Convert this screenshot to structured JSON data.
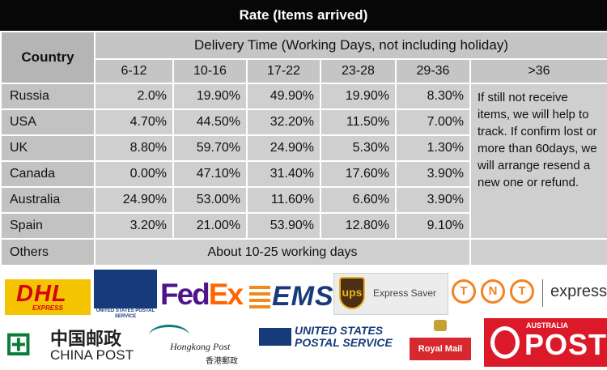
{
  "title": "Rate (Items arrived)",
  "table": {
    "country_header": "Country",
    "delivery_header": "Delivery Time (Working Days, not including holiday)",
    "ranges": [
      "6-12",
      "10-16",
      "17-22",
      "23-28",
      "29-36",
      ">36"
    ],
    "rows": [
      {
        "country": "Russia",
        "values": [
          "2.0%",
          "19.90%",
          "49.90%",
          "19.90%",
          "8.30%"
        ]
      },
      {
        "country": "USA",
        "values": [
          "4.70%",
          "44.50%",
          "32.20%",
          "11.50%",
          "7.00%"
        ]
      },
      {
        "country": "UK",
        "values": [
          "8.80%",
          "59.70%",
          "24.90%",
          "5.30%",
          "1.30%"
        ]
      },
      {
        "country": "Canada",
        "values": [
          "0.00%",
          "47.10%",
          "31.40%",
          "17.60%",
          "3.90%"
        ]
      },
      {
        "country": "Australia",
        "values": [
          "24.90%",
          "53.00%",
          "11.60%",
          "6.60%",
          "3.90%"
        ]
      },
      {
        "country": "Spain",
        "values": [
          "3.20%",
          "21.00%",
          "53.90%",
          "12.80%",
          "9.10%"
        ]
      }
    ],
    "over36_note": "If still not receive items, we will help to track. If confirm lost or more than 60days, we will arrange resend a new one or refund.",
    "others": {
      "country": "Others",
      "value": "About 10-25 working days"
    }
  },
  "logos": {
    "dhl": {
      "main": "DHL",
      "sub": "EXPRESS"
    },
    "usps_small": "UNITED STATES POSTAL SERVICE",
    "fedex": {
      "fe": "Fed",
      "ex": "Ex"
    },
    "ems": "EMS",
    "ups": {
      "shield": "ups",
      "text": "Express Saver"
    },
    "tnt": {
      "letters": [
        "T",
        "N",
        "T"
      ],
      "text": "express"
    },
    "china_post": {
      "cn": "中国邮政",
      "en": "CHINA POST"
    },
    "hongkong_post": {
      "en": "Hongkong Post",
      "cn": "香港郵政"
    },
    "usps_large": {
      "line1": "UNITED STATES",
      "line2": "POSTAL SERVICE"
    },
    "royal_mail": "Royal Mail",
    "australia_post": {
      "top": "AUSTRALIA",
      "main": "POST"
    }
  },
  "colors": {
    "title_bg": "#070707",
    "cell_bg": "#cfcfcf",
    "header_bg": "#c5c5c5"
  }
}
